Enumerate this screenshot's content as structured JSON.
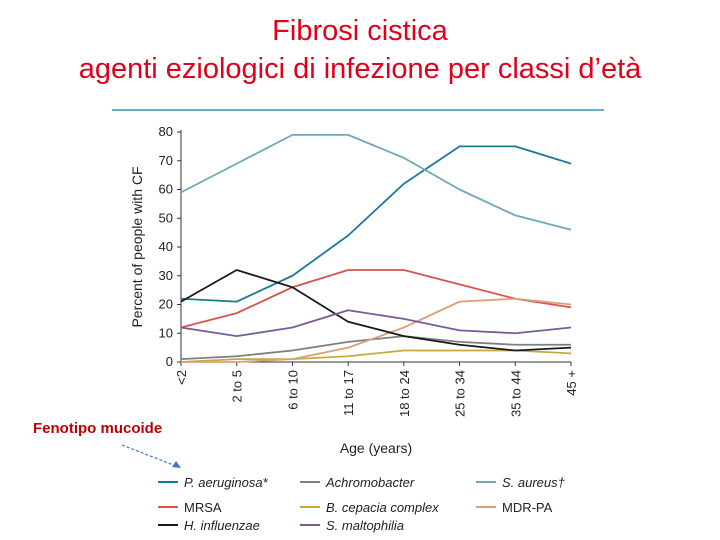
{
  "title_line1": "Fibrosi cistica",
  "title_line2": "agenti eziologici di infezione per classi d’età",
  "annotation": "Fenotipo mucoide",
  "chart_data": {
    "type": "line",
    "title": "",
    "xlabel": "Age (years)",
    "ylabel": "Percent of people with CF",
    "categories": [
      "<2",
      "2 to 5",
      "6 to 10",
      "11 to 17",
      "18 to 24",
      "25 to 34",
      "35 to 44",
      "45 +"
    ],
    "ylim": [
      0,
      80
    ],
    "yticks": [
      0,
      10,
      20,
      30,
      40,
      50,
      60,
      70,
      80
    ],
    "grid": false,
    "legend_position": "bottom",
    "series": [
      {
        "name": "P. aeruginosa*",
        "color": "#1a7a97",
        "italic": true,
        "values": [
          22,
          21,
          30,
          44,
          62,
          75,
          75,
          69
        ]
      },
      {
        "name": "Achromobacter",
        "color": "#7f7f7f",
        "italic": true,
        "values": [
          1,
          2,
          4,
          7,
          9,
          7,
          6,
          6
        ]
      },
      {
        "name": "S. aureus†",
        "color": "#6fa8b8",
        "italic": true,
        "values": [
          59,
          69,
          79,
          79,
          71,
          60,
          51,
          46
        ]
      },
      {
        "name": "MRSA",
        "color": "#d9534a",
        "italic": false,
        "values": [
          12,
          17,
          26,
          32,
          32,
          27,
          22,
          19
        ]
      },
      {
        "name": "B. cepacia complex",
        "color": "#c8a93e",
        "italic": true,
        "values": [
          0,
          1,
          1,
          2,
          4,
          4,
          4,
          3
        ]
      },
      {
        "name": "MDR-PA",
        "color": "#d9a07a",
        "italic": false,
        "values": [
          0,
          0,
          1,
          5,
          12,
          21,
          22,
          20
        ]
      },
      {
        "name": "H. influenzae",
        "color": "#1a1a1a",
        "italic": true,
        "values": [
          21,
          32,
          26,
          14,
          9,
          6,
          4,
          5
        ]
      },
      {
        "name": "S. maltophilia",
        "color": "#7a5a9a",
        "italic": true,
        "values": [
          12,
          9,
          12,
          18,
          15,
          11,
          10,
          12
        ]
      }
    ]
  }
}
